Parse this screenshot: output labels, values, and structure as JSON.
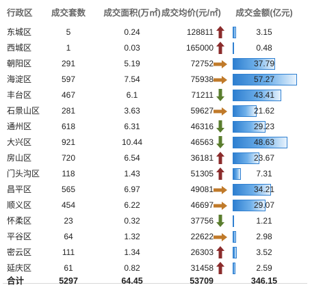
{
  "table": {
    "headers": {
      "district": "行政区",
      "deals": "成交套数",
      "area": "成交面积(万㎡)",
      "price": "成交均价(元/㎡)",
      "amount": "成交金额(亿元)"
    },
    "rows": [
      {
        "district": "东城区",
        "deals": "5",
        "area": "0.24",
        "price": "128811",
        "trend": "up",
        "amount": "3.15",
        "amount_value": 3.15
      },
      {
        "district": "西城区",
        "deals": "1",
        "area": "0.03",
        "price": "165000",
        "trend": "up",
        "amount": "0.48",
        "amount_value": 0.48
      },
      {
        "district": "朝阳区",
        "deals": "291",
        "area": "5.19",
        "price": "72752",
        "trend": "flat",
        "amount": "37.79",
        "amount_value": 37.79
      },
      {
        "district": "海淀区",
        "deals": "597",
        "area": "7.54",
        "price": "75938",
        "trend": "flat",
        "amount": "57.27",
        "amount_value": 57.27
      },
      {
        "district": "丰台区",
        "deals": "467",
        "area": "6.1",
        "price": "71211",
        "trend": "down",
        "amount": "43.41",
        "amount_value": 43.41
      },
      {
        "district": "石景山区",
        "deals": "281",
        "area": "3.63",
        "price": "59627",
        "trend": "flat",
        "amount": "21.62",
        "amount_value": 21.62
      },
      {
        "district": "通州区",
        "deals": "618",
        "area": "6.31",
        "price": "46316",
        "trend": "down",
        "amount": "29.23",
        "amount_value": 29.23
      },
      {
        "district": "大兴区",
        "deals": "921",
        "area": "10.44",
        "price": "46563",
        "trend": "down",
        "amount": "48.63",
        "amount_value": 48.63
      },
      {
        "district": "房山区",
        "deals": "720",
        "area": "6.54",
        "price": "36181",
        "trend": "up",
        "amount": "23.67",
        "amount_value": 23.67
      },
      {
        "district": "门头沟区",
        "deals": "118",
        "area": "1.43",
        "price": "51305",
        "trend": "up",
        "amount": "7.31",
        "amount_value": 7.31
      },
      {
        "district": "昌平区",
        "deals": "565",
        "area": "6.97",
        "price": "49081",
        "trend": "flat",
        "amount": "34.21",
        "amount_value": 34.21
      },
      {
        "district": "顺义区",
        "deals": "454",
        "area": "6.22",
        "price": "46697",
        "trend": "flat",
        "amount": "29.07",
        "amount_value": 29.07
      },
      {
        "district": "怀柔区",
        "deals": "23",
        "area": "0.32",
        "price": "37756",
        "trend": "down",
        "amount": "1.21",
        "amount_value": 1.21
      },
      {
        "district": "平谷区",
        "deals": "64",
        "area": "1.32",
        "price": "22622",
        "trend": "flat",
        "amount": "2.98",
        "amount_value": 2.98
      },
      {
        "district": "密云区",
        "deals": "111",
        "area": "1.34",
        "price": "26303",
        "trend": "up",
        "amount": "3.52",
        "amount_value": 3.52
      },
      {
        "district": "延庆区",
        "deals": "61",
        "area": "0.82",
        "price": "31458",
        "trend": "up",
        "amount": "2.59",
        "amount_value": 2.59
      }
    ],
    "footer": {
      "district": "合计",
      "deals": "5297",
      "area": "64.45",
      "price": "53709",
      "amount": "346.15"
    }
  },
  "colors": {
    "up": "#8b2c2c",
    "down": "#5a7d2e",
    "flat": "#c07a2a",
    "bar": "#2e7fd0"
  },
  "chart_data": {
    "type": "table",
    "columns": [
      "行政区",
      "成交套数",
      "成交面积(万㎡)",
      "成交均价(元/㎡)",
      "成交金额(亿元)"
    ],
    "rows": [
      [
        "东城区",
        5,
        0.24,
        128811,
        3.15
      ],
      [
        "西城区",
        1,
        0.03,
        165000,
        0.48
      ],
      [
        "朝阳区",
        291,
        5.19,
        72752,
        37.79
      ],
      [
        "海淀区",
        597,
        7.54,
        75938,
        57.27
      ],
      [
        "丰台区",
        467,
        6.1,
        71211,
        43.41
      ],
      [
        "石景山区",
        281,
        3.63,
        59627,
        21.62
      ],
      [
        "通州区",
        618,
        6.31,
        46316,
        29.23
      ],
      [
        "大兴区",
        921,
        10.44,
        46563,
        48.63
      ],
      [
        "房山区",
        720,
        6.54,
        36181,
        23.67
      ],
      [
        "门头沟区",
        118,
        1.43,
        51305,
        7.31
      ],
      [
        "昌平区",
        565,
        6.97,
        49081,
        34.21
      ],
      [
        "顺义区",
        454,
        6.22,
        46697,
        29.07
      ],
      [
        "怀柔区",
        23,
        0.32,
        37756,
        1.21
      ],
      [
        "平谷区",
        64,
        1.32,
        22622,
        2.98
      ],
      [
        "密云区",
        111,
        1.34,
        26303,
        3.52
      ],
      [
        "延庆区",
        61,
        0.82,
        31458,
        2.59
      ]
    ],
    "footer": [
      "合计",
      5297,
      64.45,
      53709,
      346.15
    ],
    "price_trend_icons": [
      "up",
      "up",
      "flat",
      "flat",
      "down",
      "flat",
      "down",
      "down",
      "up",
      "up",
      "flat",
      "flat",
      "down",
      "flat",
      "up",
      "up"
    ],
    "amount_data_bars": true
  }
}
